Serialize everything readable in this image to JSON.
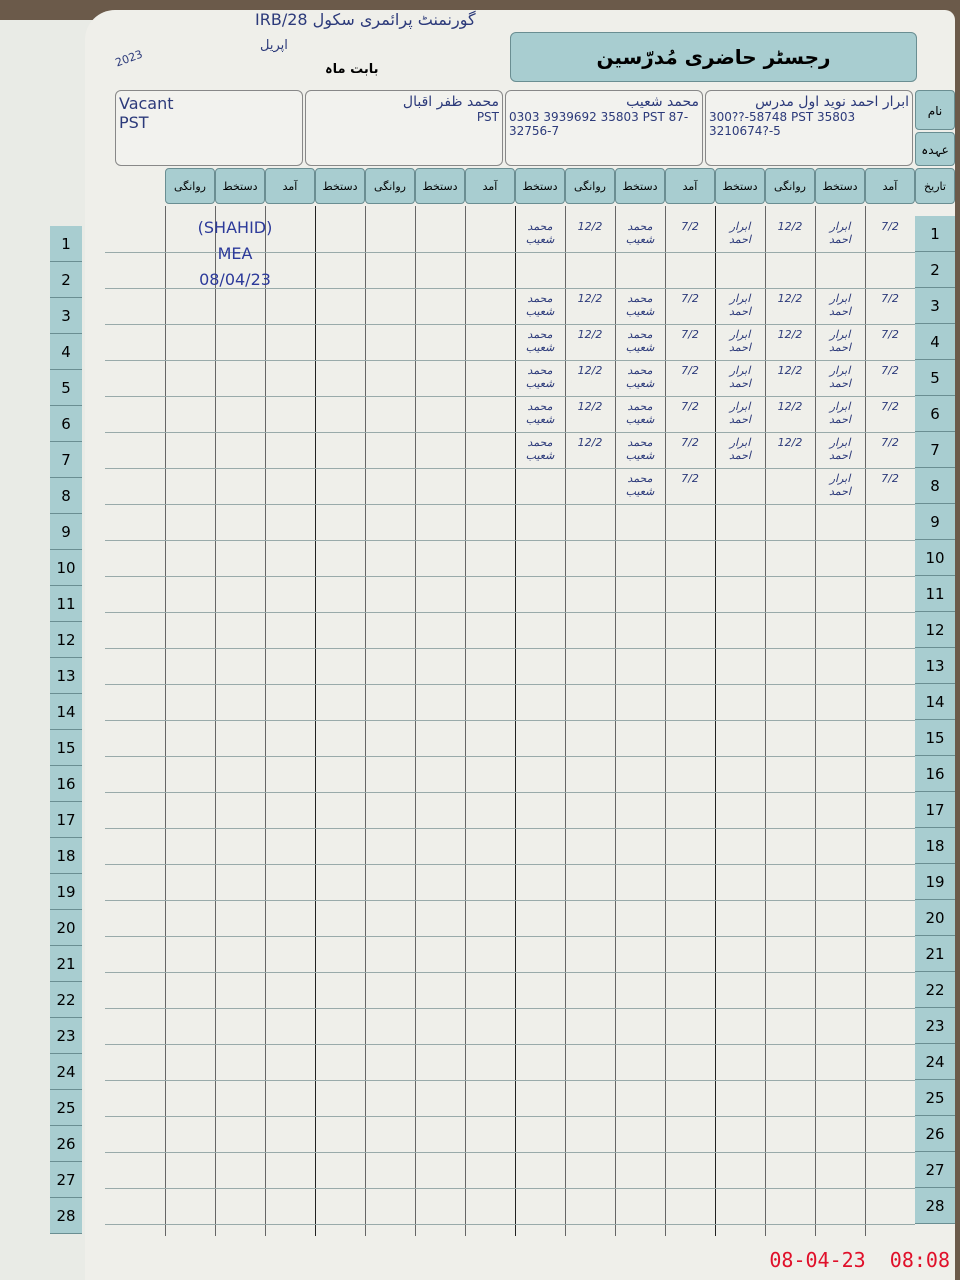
{
  "header": {
    "title": "رجسٹر حاضری مُدرّسین",
    "month_label": "بابت ماہ",
    "month_value": "اپریل",
    "year": "2023",
    "school": "گورنمنٹ پرائمری سکول 28/IRB"
  },
  "labels": {
    "name": "نام",
    "designation": "عہدہ",
    "date": "تاریخ"
  },
  "teachers": [
    {
      "name": "ابرار احمد نوید اول مدرس",
      "details": "300??-58748 PST 35803 3210674?-5"
    },
    {
      "name": "محمد شعیب",
      "details": "0303 3939692 35803 PST 87-32756-7"
    },
    {
      "name": "محمد ظفر اقبال",
      "details": "PST"
    },
    {
      "name": "Vacant",
      "details": "PST"
    }
  ],
  "column_headers": [
    "آمد",
    "دستخط",
    "روانگی",
    "دستخط"
  ],
  "rows": [
    "1",
    "2",
    "3",
    "4",
    "5",
    "6",
    "7",
    "8",
    "9",
    "10",
    "11",
    "12",
    "13",
    "14",
    "15",
    "16",
    "17",
    "18",
    "19",
    "20",
    "21",
    "22",
    "23",
    "24",
    "25",
    "26",
    "27",
    "28"
  ],
  "entries": {
    "t1_in": "7/2",
    "t1_sign": "ابرار احمد",
    "t1_out": "12/2",
    "t2_in": "7/2",
    "t2_sign": "محمد شعیب",
    "t2_out": "12/2"
  },
  "stamp": {
    "line1": "(SHAHID)",
    "line2": "MEA",
    "line3": "08/04/23"
  },
  "timestamp": "08-04-23  08:08"
}
